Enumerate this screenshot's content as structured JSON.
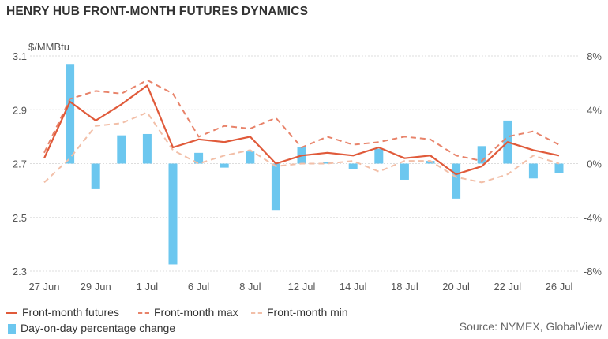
{
  "title": "HENRY HUB FRONT-MONTH FUTURES DYNAMICS",
  "source": "Source: NYMEX, GlobalView",
  "colors": {
    "futures": "#e05a3a",
    "max": "#e8836a",
    "min": "#f2bfa8",
    "change": "#6cc7ef",
    "grid": "#dddddd"
  },
  "chart_data": {
    "type": "line",
    "title": "HENRY HUB FRONT-MONTH FUTURES DYNAMICS",
    "left_axis": {
      "unit": "$/MMBtu",
      "ylim": [
        2.3,
        3.1
      ],
      "ticks": [
        "3.1",
        "2.9",
        "2.7",
        "2.5",
        "2.3"
      ],
      "tick_values": [
        3.1,
        2.9,
        2.7,
        2.5,
        2.3
      ]
    },
    "right_axis": {
      "ylim": [
        -8,
        8
      ],
      "ticks": [
        "8%",
        "4%",
        "0%",
        "-4%",
        "-8%"
      ],
      "tick_values": [
        8,
        4,
        0,
        -4,
        -8
      ]
    },
    "x_tick_labels": [
      "27 Jun",
      "29 Jun",
      "1 Jul",
      "6 Jul",
      "8 Jul",
      "12 Jul",
      "14 Jul",
      "18 Jul",
      "20 Jul",
      "22 Jul",
      "26 Jul"
    ],
    "x_tick_index": [
      0,
      2,
      4,
      6,
      8,
      10,
      12,
      14,
      16,
      18,
      20
    ],
    "grid": true,
    "legend_placement": "bottom",
    "series": [
      {
        "name": "Front-month futures",
        "type": "line",
        "axis": "left",
        "values": [
          2.72,
          2.93,
          2.86,
          2.92,
          2.99,
          2.76,
          2.79,
          2.78,
          2.8,
          2.7,
          2.73,
          2.74,
          2.73,
          2.76,
          2.72,
          2.73,
          2.66,
          2.69,
          2.78,
          2.75,
          2.73
        ]
      },
      {
        "name": "Front-month max",
        "type": "line-dashed",
        "axis": "left",
        "values": [
          2.74,
          2.94,
          2.97,
          2.96,
          3.01,
          2.96,
          2.8,
          2.84,
          2.83,
          2.87,
          2.76,
          2.8,
          2.77,
          2.78,
          2.8,
          2.79,
          2.73,
          2.71,
          2.8,
          2.82,
          2.77
        ]
      },
      {
        "name": "Front-month min",
        "type": "line-dashed",
        "axis": "left",
        "values": [
          2.63,
          2.72,
          2.84,
          2.85,
          2.89,
          2.75,
          2.7,
          2.73,
          2.75,
          2.69,
          2.7,
          2.7,
          2.71,
          2.67,
          2.71,
          2.71,
          2.65,
          2.63,
          2.66,
          2.73,
          2.7
        ]
      },
      {
        "name": "Day-on-day percentage change",
        "type": "bar",
        "axis": "right",
        "values": [
          null,
          7.4,
          -1.9,
          2.1,
          2.2,
          -7.5,
          0.8,
          -0.3,
          0.9,
          -3.5,
          1.2,
          0.1,
          -0.4,
          1.1,
          -1.2,
          0.2,
          -2.6,
          1.3,
          3.2,
          -1.1,
          -0.7
        ]
      }
    ]
  }
}
